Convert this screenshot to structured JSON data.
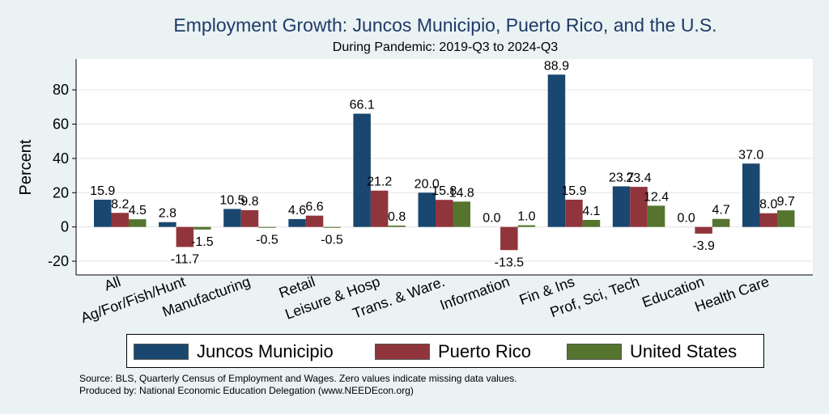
{
  "chart_data": {
    "type": "bar",
    "title": "Employment Growth: Juncos Municipio, Puerto Rico, and the U.S.",
    "subtitle": "During Pandemic: 2019-Q3 to 2024-Q3",
    "xlabel": "",
    "ylabel": "Percent",
    "ylim": [
      -28,
      98
    ],
    "yticks": [
      -20,
      0,
      20,
      40,
      60,
      80
    ],
    "grid": true,
    "legend_position": "bottom",
    "categories": [
      "All",
      "Ag/For/Fish/Hunt",
      "Manufacturing",
      "Retail",
      "Leisure & Hosp",
      "Trans. & Ware.",
      "Information",
      "Fin & Ins",
      "Prof, Sci, Tech",
      "Education",
      "Health Care"
    ],
    "series": [
      {
        "name": "Juncos Municipio",
        "color": "#1a476f",
        "values": [
          15.9,
          2.8,
          10.5,
          4.6,
          66.1,
          20.0,
          0.0,
          88.9,
          23.7,
          0.0,
          37.0
        ],
        "labels": [
          "15.9",
          "2.8",
          "10.5",
          "4.6",
          "66.1",
          "20.0",
          "0.0",
          "88.9",
          "23.7",
          "0.0",
          "37.0"
        ]
      },
      {
        "name": "Puerto Rico",
        "color": "#90353b",
        "values": [
          8.2,
          -11.7,
          9.8,
          6.6,
          21.2,
          15.8,
          -13.5,
          15.9,
          23.4,
          -3.9,
          8.0
        ],
        "labels": [
          "8.2",
          "-11.7",
          "9.8",
          "6.6",
          "21.2",
          "15.8",
          "-13.5",
          "15.9",
          "23.4",
          "-3.9",
          "8.0"
        ]
      },
      {
        "name": "United States",
        "color": "#55752f",
        "values": [
          4.5,
          -1.5,
          -0.5,
          -0.5,
          0.8,
          14.8,
          1.0,
          4.1,
          12.4,
          4.7,
          9.7
        ],
        "labels": [
          "4.5",
          "-1.5",
          "-0.5",
          "-0.5",
          "0.8",
          "14.8",
          "1.0",
          "4.1",
          "12.4",
          "4.7",
          "9.7"
        ]
      }
    ]
  },
  "notes": {
    "source": "Source: BLS, Quarterly Census of Employment and Wages. Zero values indicate missing data values.",
    "produced": "Produced by: National Economic Education Delegation (www.NEEDEcon.org)"
  }
}
